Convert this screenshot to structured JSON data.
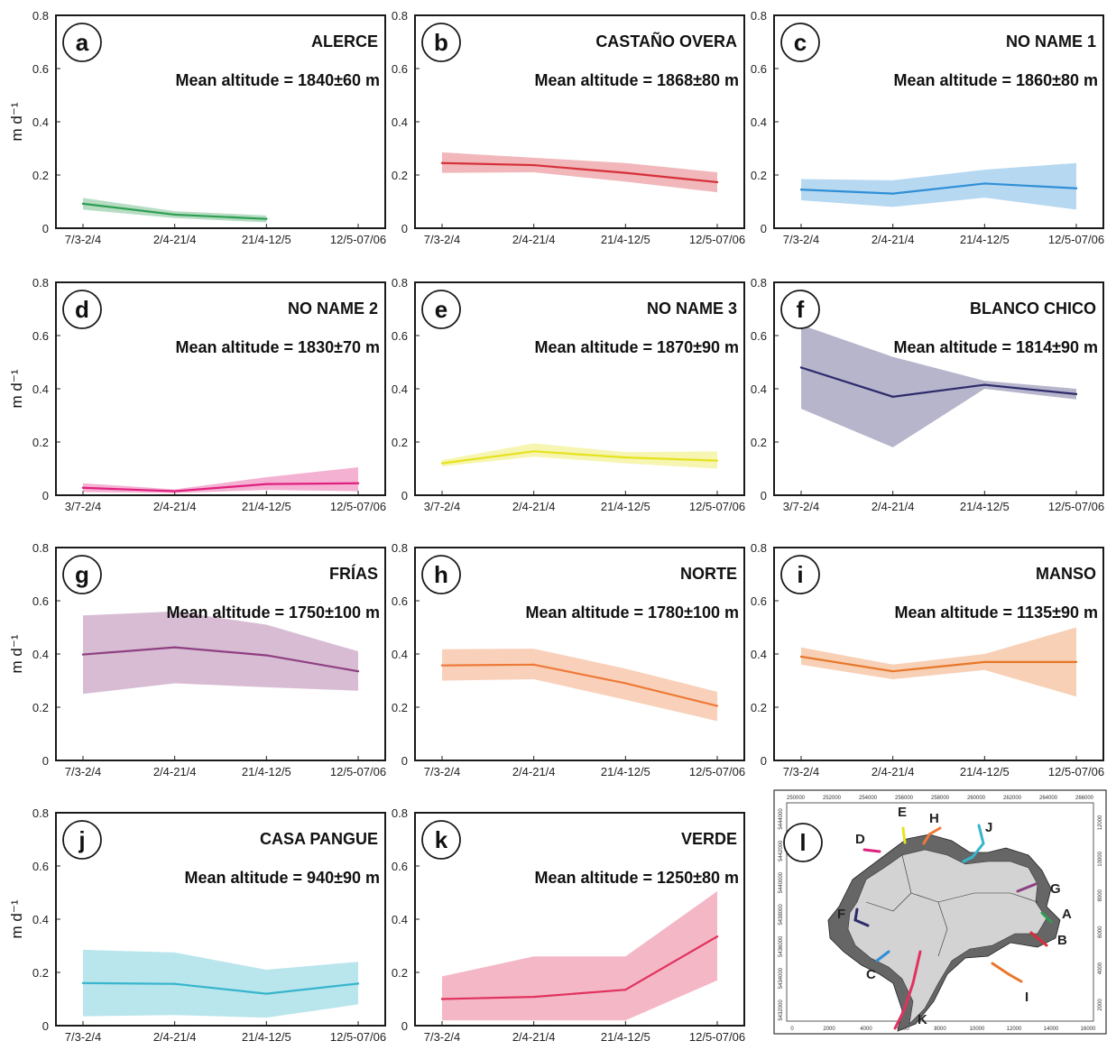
{
  "y_unit_label": "m d⁻¹",
  "y_ticks": [
    "0",
    "0.2",
    "0.4",
    "0.6",
    "0.8"
  ],
  "chart_data": [
    {
      "type": "line",
      "letter": "a",
      "name": "ALERCE",
      "altitude": "Mean altitude = 1840±60 m",
      "color": "#2e9e52",
      "categories": [
        "7/3-2/4",
        "2/4-21/4",
        "21/4-12/5",
        "12/5-07/06"
      ],
      "ylim": [
        0,
        0.8
      ],
      "values": [
        0.092,
        0.051,
        0.035,
        null
      ],
      "lower": [
        0.07,
        0.038,
        0.022,
        null
      ],
      "upper": [
        0.114,
        0.064,
        0.048,
        null
      ]
    },
    {
      "type": "line",
      "letter": "b",
      "name": "CASTAÑO OVERA",
      "altitude": "Mean altitude = 1868±80 m",
      "color": "#d6303a",
      "categories": [
        "7/3-2/4",
        "2/4-21/4",
        "21/4-12/5",
        "12/5-07/06"
      ],
      "ylim": [
        0,
        0.8
      ],
      "values": [
        0.245,
        0.237,
        0.208,
        0.173
      ],
      "lower": [
        0.208,
        0.21,
        0.175,
        0.135
      ],
      "upper": [
        0.285,
        0.265,
        0.245,
        0.21
      ]
    },
    {
      "type": "line",
      "letter": "c",
      "name": "NO NAME 1",
      "altitude": "Mean altitude = 1860±80 m",
      "color": "#2f8fd6",
      "categories": [
        "7/3-2/4",
        "2/4-21/4",
        "21/4-12/5",
        "12/5-07/06"
      ],
      "ylim": [
        0,
        0.8
      ],
      "values": [
        0.145,
        0.13,
        0.168,
        0.15
      ],
      "lower": [
        0.105,
        0.08,
        0.115,
        0.07
      ],
      "upper": [
        0.185,
        0.18,
        0.22,
        0.245
      ]
    },
    {
      "type": "line",
      "letter": "d",
      "name": "NO NAME 2",
      "altitude": "Mean altitude = 1830±70 m",
      "color": "#e0207f",
      "categories": [
        "3/7-2/4",
        "2/4-21/4",
        "21/4-12/5",
        "12/5-07/06"
      ],
      "ylim": [
        0,
        0.8
      ],
      "values": [
        0.028,
        0.015,
        0.042,
        0.045
      ],
      "lower": [
        0.012,
        0.008,
        0.02,
        0.015
      ],
      "upper": [
        0.045,
        0.022,
        0.068,
        0.105
      ]
    },
    {
      "type": "line",
      "letter": "e",
      "name": "NO NAME 3",
      "altitude": "Mean altitude = 1870±90 m",
      "color": "#e6e31f",
      "categories": [
        "3/7-2/4",
        "2/4-21/4",
        "21/4-12/5",
        "12/5-07/06"
      ],
      "ylim": [
        0,
        0.8
      ],
      "values": [
        0.12,
        0.165,
        0.142,
        0.13
      ],
      "lower": [
        0.108,
        0.145,
        0.12,
        0.1
      ],
      "upper": [
        0.132,
        0.195,
        0.162,
        0.165
      ]
    },
    {
      "type": "line",
      "letter": "f",
      "name": "BLANCO CHICO",
      "altitude": "Mean altitude = 1814±90 m",
      "color": "#2d2a6b",
      "categories": [
        "3/7-2/4",
        "2/4-21/4",
        "21/4-12/5",
        "12/5-07/06"
      ],
      "ylim": [
        0,
        0.8
      ],
      "values": [
        0.48,
        0.37,
        0.415,
        0.38
      ],
      "lower": [
        0.325,
        0.18,
        0.4,
        0.36
      ],
      "upper": [
        0.64,
        0.52,
        0.43,
        0.4
      ]
    },
    {
      "type": "line",
      "letter": "g",
      "name": "FRÍAS",
      "altitude": "Mean altitude = 1750±100 m",
      "color": "#8e3f82",
      "categories": [
        "7/3-2/4",
        "2/4-21/4",
        "21/4-12/5",
        "12/5-07/06"
      ],
      "ylim": [
        0,
        0.8
      ],
      "values": [
        0.398,
        0.425,
        0.395,
        0.335
      ],
      "lower": [
        0.25,
        0.29,
        0.275,
        0.262
      ],
      "upper": [
        0.545,
        0.56,
        0.51,
        0.41
      ]
    },
    {
      "type": "line",
      "letter": "h",
      "name": "NORTE",
      "altitude": "Mean altitude = 1780±100 m",
      "color": "#ee7a3a",
      "categories": [
        "7/3-2/4",
        "2/4-21/4",
        "21/4-12/5",
        "12/5-07/06"
      ],
      "ylim": [
        0,
        0.8
      ],
      "values": [
        0.357,
        0.36,
        0.29,
        0.205
      ],
      "lower": [
        0.3,
        0.305,
        0.228,
        0.148
      ],
      "upper": [
        0.418,
        0.42,
        0.345,
        0.258
      ]
    },
    {
      "type": "line",
      "letter": "i",
      "name": "MANSO",
      "altitude": "Mean altitude = 1135±90 m",
      "color": "#e8772a",
      "categories": [
        "7/3-2/4",
        "2/4-21/4",
        "21/4-12/5",
        "12/5-07/06"
      ],
      "ylim": [
        0,
        0.8
      ],
      "values": [
        0.39,
        0.335,
        0.37,
        0.37
      ],
      "lower": [
        0.36,
        0.305,
        0.34,
        0.24
      ],
      "upper": [
        0.425,
        0.36,
        0.4,
        0.5
      ]
    },
    {
      "type": "line",
      "letter": "j",
      "name": "CASA PANGUE",
      "altitude": "Mean altitude = 940±90 m",
      "color": "#36b5cc",
      "categories": [
        "7/3-2/4",
        "2/4-21/4",
        "21/4-12/5",
        "12/5-07/06"
      ],
      "ylim": [
        0,
        0.8
      ],
      "values": [
        0.16,
        0.157,
        0.12,
        0.158
      ],
      "lower": [
        0.035,
        0.04,
        0.03,
        0.08
      ],
      "upper": [
        0.285,
        0.275,
        0.21,
        0.24
      ]
    },
    {
      "type": "line",
      "letter": "k",
      "name": "VERDE",
      "altitude": "Mean altitude = 1250±80 m",
      "color": "#e0325d",
      "categories": [
        "7/3-2/4",
        "2/4-21/4",
        "21/4-12/5",
        "12/5-07/06"
      ],
      "ylim": [
        0,
        0.8
      ],
      "values": [
        0.1,
        0.108,
        0.135,
        0.335
      ],
      "lower": [
        0.02,
        0.02,
        0.02,
        0.17
      ],
      "upper": [
        0.185,
        0.26,
        0.26,
        0.505
      ]
    }
  ],
  "map": {
    "letter": "l",
    "top_ticks": [
      "250000",
      "252000",
      "254000",
      "256000",
      "258000",
      "260000",
      "262000",
      "264000",
      "266000"
    ],
    "bottom_ticks": [
      "0",
      "2000",
      "4000",
      "6000",
      "8000",
      "10000",
      "12000",
      "14000",
      "16000"
    ],
    "left_ticks": [
      "5444000",
      "5442000",
      "5440000",
      "5438000",
      "5436000",
      "5434000",
      "5432000"
    ],
    "right_ticks": [
      "12000",
      "10000",
      "8000",
      "6000",
      "4000",
      "2000"
    ],
    "labels": [
      {
        "text": "A",
        "color": "#2e9e52"
      },
      {
        "text": "B",
        "color": "#d6303a"
      },
      {
        "text": "C",
        "color": "#2f8fd6"
      },
      {
        "text": "D",
        "color": "#e0207f"
      },
      {
        "text": "E",
        "color": "#e6e31f"
      },
      {
        "text": "F",
        "color": "#2d2a6b"
      },
      {
        "text": "G",
        "color": "#8e3f82"
      },
      {
        "text": "H",
        "color": "#ee7a3a"
      },
      {
        "text": "I",
        "color": "#e8772a"
      },
      {
        "text": "J",
        "color": "#36b5cc"
      },
      {
        "text": "K",
        "color": "#e0325d"
      }
    ]
  }
}
